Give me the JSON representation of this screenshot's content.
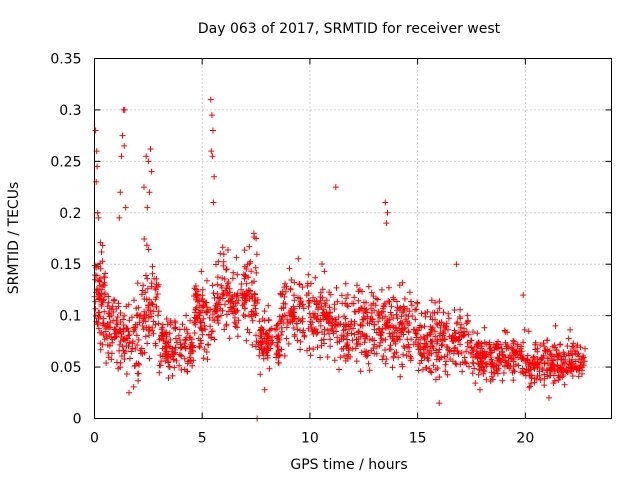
{
  "chart_data": {
    "type": "scatter",
    "title": "Day 063 of 2017, SRMTID for receiver west",
    "xlabel": "GPS time / hours",
    "ylabel": "SRMTID / TECUs",
    "xlim": [
      0,
      24
    ],
    "ylim": [
      0,
      0.35
    ],
    "xticks": [
      0,
      5,
      10,
      15,
      20
    ],
    "xtick_labels": [
      "0",
      "5",
      "10",
      "15",
      "20"
    ],
    "yticks": [
      0,
      0.05,
      0.1,
      0.15,
      0.2,
      0.25,
      0.3,
      0.35
    ],
    "ytick_labels": [
      "0",
      "0.05",
      "0.1",
      "0.15",
      "0.2",
      "0.25",
      "0.3",
      "0.35"
    ],
    "grid": true,
    "marker": "+",
    "color": "#ff0000",
    "segments": [
      {
        "x0": 0.0,
        "x1": 0.5,
        "base": 0.115,
        "spread": 0.055,
        "n": 70
      },
      {
        "x0": 0.5,
        "x1": 1.3,
        "base": 0.09,
        "spread": 0.045,
        "n": 70
      },
      {
        "x0": 1.3,
        "x1": 2.2,
        "base": 0.075,
        "spread": 0.045,
        "n": 70
      },
      {
        "x0": 2.2,
        "x1": 3.0,
        "base": 0.11,
        "spread": 0.05,
        "n": 70
      },
      {
        "x0": 3.0,
        "x1": 4.6,
        "base": 0.07,
        "spread": 0.03,
        "n": 130
      },
      {
        "x0": 4.6,
        "x1": 5.6,
        "base": 0.1,
        "spread": 0.045,
        "n": 90
      },
      {
        "x0": 5.6,
        "x1": 7.6,
        "base": 0.12,
        "spread": 0.045,
        "n": 170
      },
      {
        "x0": 7.6,
        "x1": 8.6,
        "base": 0.075,
        "spread": 0.03,
        "n": 90
      },
      {
        "x0": 8.6,
        "x1": 11.0,
        "base": 0.1,
        "spread": 0.04,
        "n": 190
      },
      {
        "x0": 11.0,
        "x1": 13.0,
        "base": 0.09,
        "spread": 0.04,
        "n": 160
      },
      {
        "x0": 13.0,
        "x1": 15.0,
        "base": 0.09,
        "spread": 0.04,
        "n": 160
      },
      {
        "x0": 15.0,
        "x1": 17.5,
        "base": 0.075,
        "spread": 0.035,
        "n": 200
      },
      {
        "x0": 17.5,
        "x1": 20.0,
        "base": 0.06,
        "spread": 0.025,
        "n": 200
      },
      {
        "x0": 20.0,
        "x1": 22.8,
        "base": 0.055,
        "spread": 0.022,
        "n": 220
      }
    ],
    "peaks": [
      {
        "x": 0.05,
        "y": 0.28
      },
      {
        "x": 0.1,
        "y": 0.26
      },
      {
        "x": 0.12,
        "y": 0.245
      },
      {
        "x": 0.15,
        "y": 0.2
      },
      {
        "x": 0.08,
        "y": 0.23
      },
      {
        "x": 0.18,
        "y": 0.195
      },
      {
        "x": 1.35,
        "y": 0.3
      },
      {
        "x": 1.4,
        "y": 0.3
      },
      {
        "x": 1.3,
        "y": 0.275
      },
      {
        "x": 1.38,
        "y": 0.265
      },
      {
        "x": 1.25,
        "y": 0.255
      },
      {
        "x": 1.2,
        "y": 0.22
      },
      {
        "x": 1.45,
        "y": 0.205
      },
      {
        "x": 1.15,
        "y": 0.195
      },
      {
        "x": 2.4,
        "y": 0.255
      },
      {
        "x": 2.5,
        "y": 0.25
      },
      {
        "x": 2.6,
        "y": 0.262
      },
      {
        "x": 2.65,
        "y": 0.24
      },
      {
        "x": 2.3,
        "y": 0.225
      },
      {
        "x": 2.55,
        "y": 0.22
      },
      {
        "x": 2.45,
        "y": 0.205
      },
      {
        "x": 5.4,
        "y": 0.31
      },
      {
        "x": 5.45,
        "y": 0.295
      },
      {
        "x": 5.5,
        "y": 0.28
      },
      {
        "x": 5.42,
        "y": 0.26
      },
      {
        "x": 5.48,
        "y": 0.255
      },
      {
        "x": 5.55,
        "y": 0.235
      },
      {
        "x": 5.52,
        "y": 0.21
      },
      {
        "x": 7.4,
        "y": 0.18
      },
      {
        "x": 7.5,
        "y": 0.175
      },
      {
        "x": 11.2,
        "y": 0.225
      },
      {
        "x": 13.5,
        "y": 0.21
      },
      {
        "x": 13.6,
        "y": 0.2
      },
      {
        "x": 13.55,
        "y": 0.19
      },
      {
        "x": 16.8,
        "y": 0.15
      },
      {
        "x": 19.9,
        "y": 0.12
      },
      {
        "x": 21.4,
        "y": 0.09
      }
    ],
    "outliers": [
      {
        "x": 7.55,
        "y": 0.0
      },
      {
        "x": 1.6,
        "y": 0.025
      },
      {
        "x": 7.9,
        "y": 0.028
      },
      {
        "x": 16.0,
        "y": 0.015
      },
      {
        "x": 21.1,
        "y": 0.02
      }
    ]
  }
}
